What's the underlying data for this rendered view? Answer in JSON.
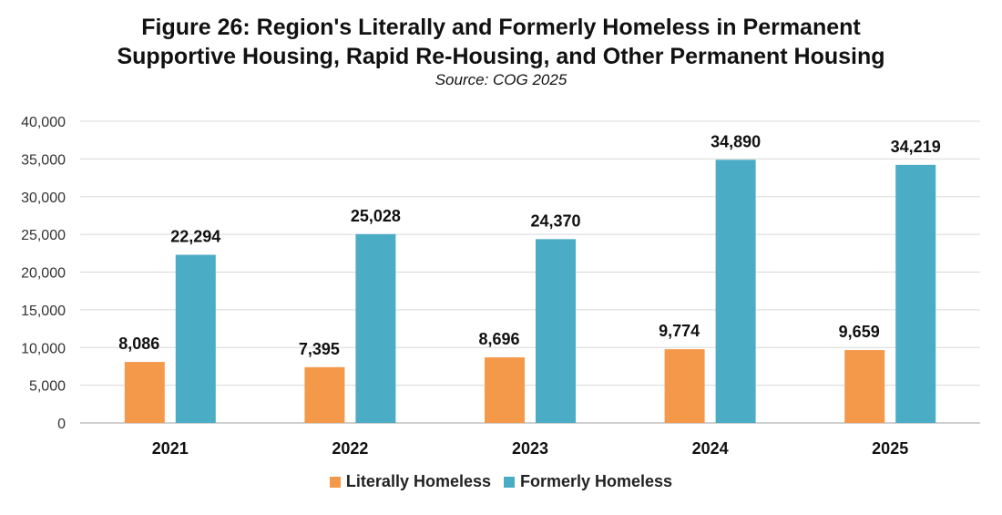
{
  "title": {
    "line1": "Figure 26: Region's Literally and Formerly Homeless in Permanent",
    "line2": "Supportive Housing, Rapid Re-Housing, and Other Permanent Housing",
    "source": "Source: COG 2025"
  },
  "colors": {
    "literally": "#F4994A",
    "formerly": "#4BACC6",
    "grid": "#d9d9d9",
    "axis": "#bfbfbf"
  },
  "chart_data": {
    "type": "bar",
    "title": "Figure 26: Region's Literally and Formerly Homeless in Permanent Supportive Housing, Rapid Re-Housing, and Other Permanent Housing",
    "subtitle": "Source: COG 2025",
    "categories": [
      "2021",
      "2022",
      "2023",
      "2024",
      "2025"
    ],
    "series": [
      {
        "name": "Literally Homeless",
        "values": [
          8086,
          7395,
          8696,
          9774,
          9659
        ],
        "labels": [
          "8,086",
          "7,395",
          "8,696",
          "9,774",
          "9,659"
        ]
      },
      {
        "name": "Formerly Homeless",
        "values": [
          22294,
          25028,
          24370,
          34890,
          34219
        ],
        "labels": [
          "22,294",
          "25,028",
          "24,370",
          "34,890",
          "34,219"
        ]
      }
    ],
    "ylim": [
      0,
      40000
    ],
    "yticks": [
      0,
      5000,
      10000,
      15000,
      20000,
      25000,
      30000,
      35000,
      40000
    ],
    "ytick_labels": [
      "0",
      "5,000",
      "10,000",
      "15,000",
      "20,000",
      "25,000",
      "30,000",
      "35,000",
      "40,000"
    ],
    "xlabel": "",
    "ylabel": "",
    "grid": true,
    "legend_position": "bottom"
  }
}
